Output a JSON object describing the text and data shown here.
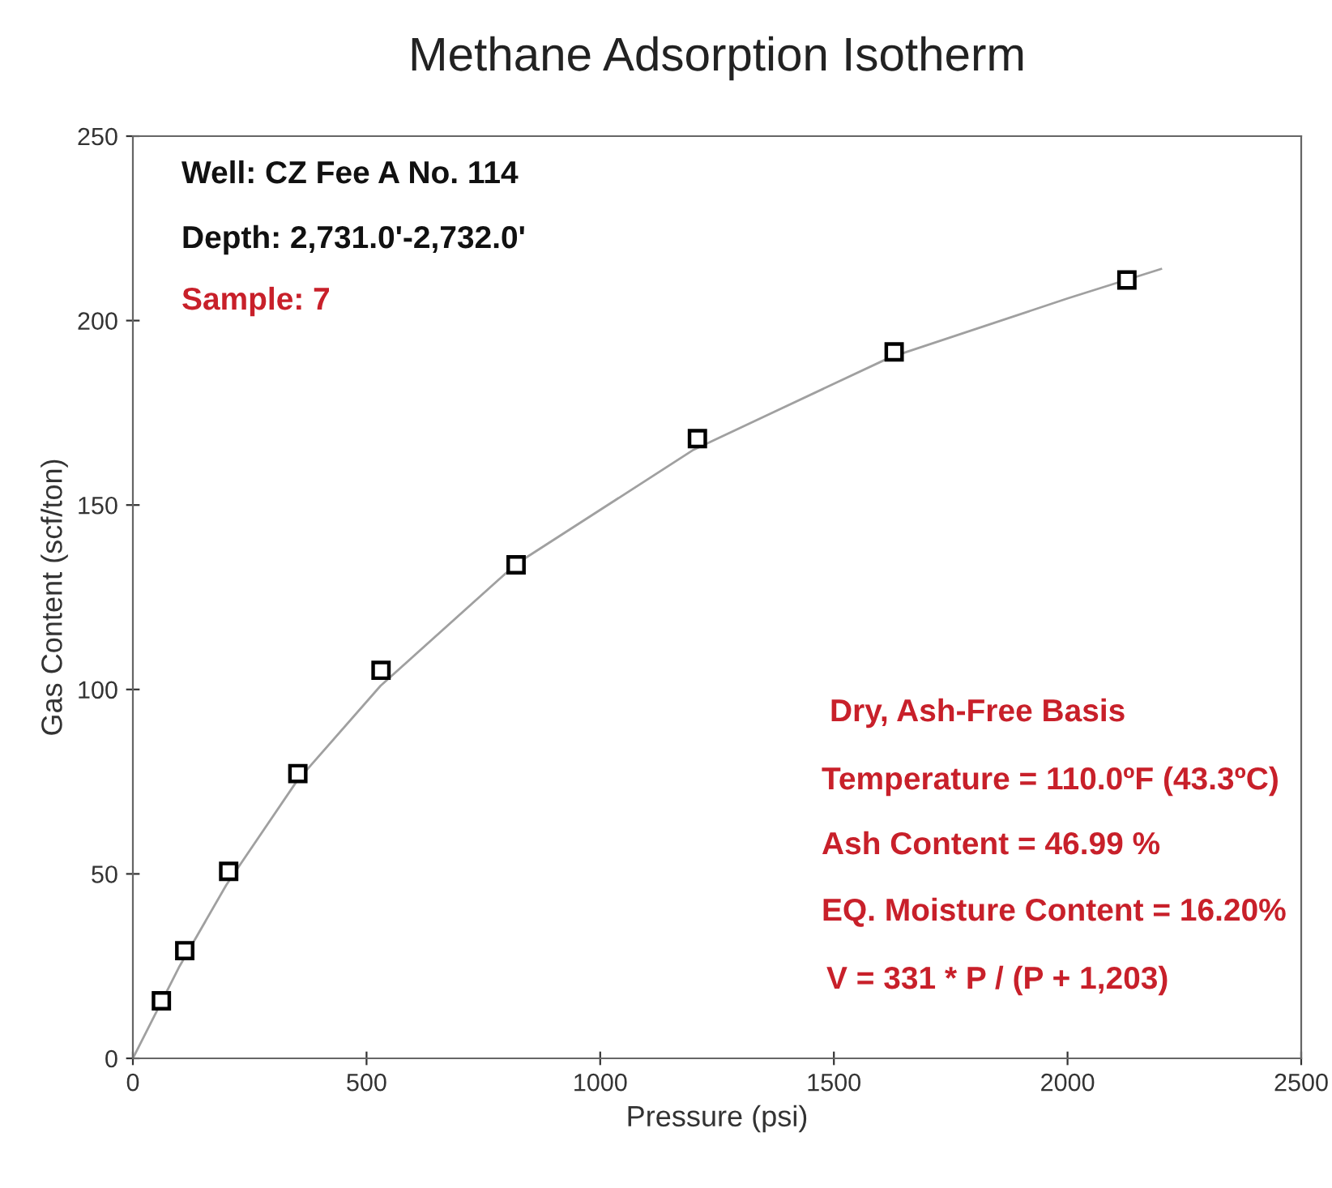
{
  "chart_data": {
    "type": "scatter",
    "title": "Methane Adsorption Isotherm",
    "xlabel": "Pressure (psi)",
    "ylabel": "Gas Content (scf/ton)",
    "xlim": [
      0,
      2500
    ],
    "xticks": [
      0,
      500,
      1000,
      1500,
      2000,
      2500
    ],
    "ylim": [
      0,
      250
    ],
    "yticks": [
      0,
      50,
      100,
      150,
      200,
      250
    ],
    "grid": false,
    "legend": false,
    "marker": "square",
    "series": [
      {
        "color": "#000000",
        "x": [
          61,
          111,
          205,
          353,
          531,
          820,
          1208,
          1629,
          2127
        ],
        "values": [
          15.6,
          29.2,
          50.7,
          77.2,
          105.2,
          133.8,
          168,
          191.5,
          211
        ]
      },
      {
        "type": "line",
        "color": "#a0a0a0",
        "line_style": "solid",
        "marker": "none",
        "x": [
          0,
          100,
          200,
          350,
          530,
          820,
          1200,
          1620,
          2000,
          2200
        ],
        "values": [
          0,
          25,
          47,
          75,
          101,
          134,
          165,
          190,
          206,
          214
        ]
      }
    ],
    "annotations": [
      "Well: CZ Fee A No. 114",
      "Depth: 2,731.0'-2,732.0'",
      "Sample: 7",
      "Dry, Ash-Free Basis",
      "Temperature = 110.0ºF (43.3ºC)",
      "Ash Content = 46.99 %",
      "EQ. Moisture Content = 16.20%",
      "V = 331 * P / (P + 1,203)"
    ]
  }
}
